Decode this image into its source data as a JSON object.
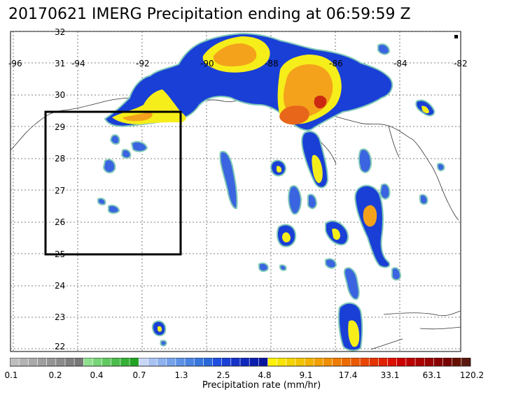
{
  "title": "20170621 IMERG Precipitation ending at 06:59:59 Z",
  "map": {
    "lon_labels": [
      "-96",
      "-94",
      "-92",
      "-90",
      "-88",
      "-86",
      "-84",
      "-82"
    ],
    "lat_labels": [
      "32",
      "31",
      "30",
      "29",
      "28",
      "27",
      "26",
      "25",
      "24",
      "23",
      "22"
    ],
    "lon_range": [
      -96,
      -82
    ],
    "lat_range": [
      22,
      32
    ],
    "gridlines": "dotted",
    "highlight_box": {
      "lon_min": -95,
      "lon_max": -90.8,
      "lat_min": 25,
      "lat_max": 29.5
    },
    "colors": {
      "coast": "#333333",
      "box": "#000000",
      "light_blue": "#6fa8e8",
      "blue": "#1a3fd6",
      "teal_edge": "#7fc8b8",
      "yellow": "#f6ee1a",
      "orange": "#f4a21c",
      "dark_orange": "#e8661a"
    }
  },
  "colorbar": {
    "title": "Precipitation rate (mm/hr)",
    "tick_labels": [
      "0.1",
      "0.2",
      "0.4",
      "0.7",
      "1.3",
      "2.5",
      "4.8",
      "9.1",
      "17.4",
      "33.1",
      "63.1",
      "120.2"
    ],
    "colors": [
      "#bdbdbd",
      "#b3b3b3",
      "#a9a9a9",
      "#9f9f9f",
      "#959595",
      "#8b8b8b",
      "#7f7f7f",
      "#777777",
      "#8ee08e",
      "#78d478",
      "#62c862",
      "#4cbc4c",
      "#36b036",
      "#22a422",
      "#c8d6f6",
      "#a8c2f2",
      "#8eb2ee",
      "#76a2ea",
      "#5e92e6",
      "#4a84e2",
      "#3876de",
      "#2a68da",
      "#1f4fe0",
      "#1a3fd6",
      "#1533c8",
      "#1028ba",
      "#0c1eac",
      "#08149e",
      "#fff200",
      "#f8e400",
      "#f4d400",
      "#f2c400",
      "#f2b200",
      "#f2a000",
      "#f08e00",
      "#ee7c00",
      "#ec6a00",
      "#ea5800",
      "#e84600",
      "#e43400",
      "#e02200",
      "#dc1000",
      "#cc0000",
      "#bb0000",
      "#aa0000",
      "#990000",
      "#880000",
      "#770000",
      "#661100",
      "#5a1a10"
    ]
  }
}
